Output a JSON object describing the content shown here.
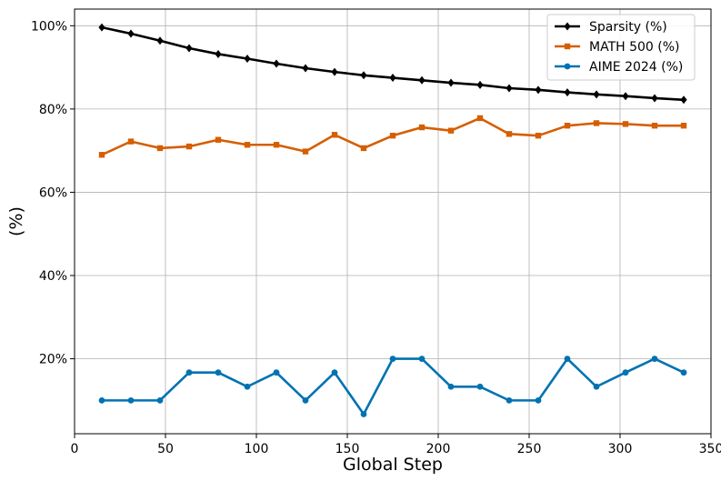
{
  "chart_data": {
    "type": "line",
    "title": "",
    "xlabel": "Global Step",
    "ylabel": "(%)",
    "xlim": [
      0,
      350
    ],
    "ylim": [
      2,
      104
    ],
    "xticks": [
      0,
      50,
      100,
      150,
      200,
      250,
      300,
      350
    ],
    "yticks": [
      20,
      40,
      60,
      80,
      100
    ],
    "xtick_labels": [
      "0",
      "50",
      "100",
      "150",
      "200",
      "250",
      "300",
      "350"
    ],
    "ytick_labels": [
      "20%",
      "40%",
      "60%",
      "80%",
      "100%"
    ],
    "grid": true,
    "legend_position": "top-right",
    "x": [
      15,
      31,
      47,
      63,
      79,
      95,
      111,
      127,
      143,
      159,
      175,
      191,
      207,
      223,
      239,
      255,
      271,
      287,
      303,
      319,
      335
    ],
    "series": [
      {
        "name": "Sparsity (%)",
        "color": "#000000",
        "marker": "diamond",
        "values": [
          99.6,
          98.1,
          96.4,
          94.6,
          93.2,
          92.1,
          90.9,
          89.8,
          88.9,
          88.1,
          87.5,
          86.9,
          86.3,
          85.8,
          85.0,
          84.6,
          84.0,
          83.5,
          83.1,
          82.6,
          82.2
        ]
      },
      {
        "name": "MATH 500 (%)",
        "color": "#d55e00",
        "marker": "square",
        "values": [
          69.0,
          72.2,
          70.6,
          71.0,
          72.6,
          71.4,
          71.4,
          69.8,
          73.8,
          70.6,
          73.6,
          75.6,
          74.8,
          77.8,
          74.0,
          73.6,
          76.0,
          76.6,
          76.4,
          76.0,
          76.0
        ]
      },
      {
        "name": "AIME 2024 (%)",
        "color": "#0072b2",
        "marker": "circle",
        "values": [
          10.0,
          10.0,
          10.0,
          16.7,
          16.7,
          13.3,
          16.7,
          10.0,
          16.7,
          6.7,
          20.0,
          20.0,
          13.3,
          13.3,
          10.0,
          10.0,
          20.0,
          13.3,
          16.7,
          20.0,
          16.7
        ]
      }
    ]
  }
}
